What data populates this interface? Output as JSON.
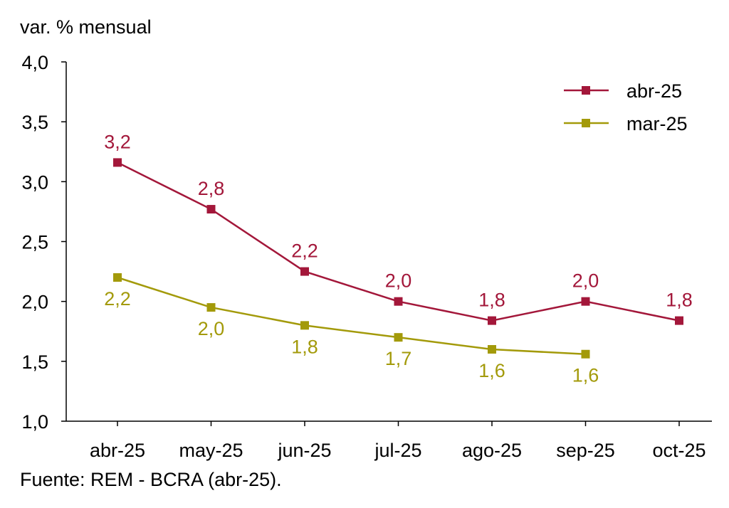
{
  "chart_data": {
    "type": "line",
    "ylabel": "var. % mensual",
    "ylim": [
      1.0,
      4.0
    ],
    "yticks": [
      "1,0",
      "1,5",
      "2,0",
      "2,5",
      "3,0",
      "3,5",
      "4,0"
    ],
    "categories": [
      "abr-25",
      "may-25",
      "jun-25",
      "jul-25",
      "ago-25",
      "sep-25",
      "oct-25"
    ],
    "series": [
      {
        "name": "abr-25",
        "color": "#A3173A",
        "values": [
          3.16,
          2.77,
          2.25,
          2.0,
          1.84,
          2.0,
          1.84
        ],
        "labels": [
          "3,2",
          "2,8",
          "2,2",
          "2,0",
          "1,8",
          "2,0",
          "1,8"
        ],
        "label_position": "above"
      },
      {
        "name": "mar-25",
        "color": "#A39A0A",
        "values": [
          2.2,
          1.95,
          1.8,
          1.7,
          1.6,
          1.56,
          null
        ],
        "labels": [
          "2,2",
          "2,0",
          "1,8",
          "1,7",
          "1,6",
          "1,6",
          null
        ],
        "label_position": "below"
      }
    ],
    "legend_position": "top-right",
    "grid": false
  },
  "source": "Fuente: REM - BCRA (abr-25)."
}
